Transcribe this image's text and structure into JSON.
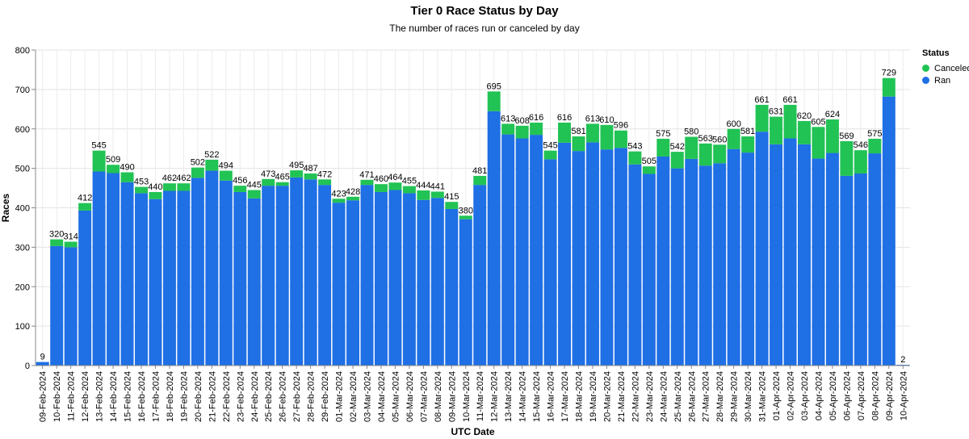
{
  "chart_data": {
    "type": "bar",
    "stacked": true,
    "title": "Tier 0 Race Status by Day",
    "subtitle": "The number of races run or canceled by day",
    "xlabel": "UTC Date",
    "ylabel": "Races",
    "ylim": [
      0,
      800
    ],
    "yticks": [
      "0",
      "100",
      "200",
      "300",
      "400",
      "500",
      "600",
      "700",
      "800"
    ],
    "legend": {
      "title": "Status",
      "position": "top-right"
    },
    "categories": [
      "09-Feb-2024",
      "10-Feb-2024",
      "11-Feb-2024",
      "12-Feb-2024",
      "13-Feb-2024",
      "14-Feb-2024",
      "15-Feb-2024",
      "16-Feb-2024",
      "17-Feb-2024",
      "18-Feb-2024",
      "19-Feb-2024",
      "20-Feb-2024",
      "21-Feb-2024",
      "22-Feb-2024",
      "23-Feb-2024",
      "24-Feb-2024",
      "25-Feb-2024",
      "26-Feb-2024",
      "27-Feb-2024",
      "28-Feb-2024",
      "29-Feb-2024",
      "01-Mar-2024",
      "02-Mar-2024",
      "03-Mar-2024",
      "04-Mar-2024",
      "05-Mar-2024",
      "06-Mar-2024",
      "07-Mar-2024",
      "08-Mar-2024",
      "09-Mar-2024",
      "10-Mar-2024",
      "11-Mar-2024",
      "12-Mar-2024",
      "13-Mar-2024",
      "14-Mar-2024",
      "15-Mar-2024",
      "16-Mar-2024",
      "17-Mar-2024",
      "18-Mar-2024",
      "19-Mar-2024",
      "20-Mar-2024",
      "21-Mar-2024",
      "22-Mar-2024",
      "23-Mar-2024",
      "24-Mar-2024",
      "25-Mar-2024",
      "26-Mar-2024",
      "27-Mar-2024",
      "28-Mar-2024",
      "29-Mar-2024",
      "30-Mar-2024",
      "31-Mar-2024",
      "01-Apr-2024",
      "02-Apr-2024",
      "03-Apr-2024",
      "04-Apr-2024",
      "05-Apr-2024",
      "06-Apr-2024",
      "07-Apr-2024",
      "08-Apr-2024",
      "09-Apr-2024",
      "10-Apr-2024"
    ],
    "totals": [
      9,
      320,
      314,
      412,
      545,
      509,
      490,
      453,
      440,
      462,
      462,
      502,
      522,
      494,
      456,
      445,
      473,
      465,
      495,
      487,
      472,
      423,
      428,
      471,
      460,
      464,
      455,
      444,
      441,
      415,
      380,
      481,
      695,
      613,
      608,
      616,
      545,
      616,
      581,
      613,
      610,
      596,
      543,
      505,
      575,
      542,
      580,
      563,
      560,
      600,
      581,
      661,
      631,
      661,
      620,
      605,
      624,
      569,
      546,
      575,
      729,
      2
    ],
    "series": [
      {
        "name": "Ran",
        "color": "#1f6fe5",
        "values": [
          9,
          303,
          300,
          393,
          492,
          488,
          465,
          437,
          422,
          443,
          443,
          476,
          494,
          469,
          440,
          424,
          456,
          456,
          477,
          472,
          458,
          413,
          419,
          458,
          440,
          445,
          437,
          420,
          425,
          397,
          371,
          458,
          645,
          586,
          576,
          585,
          523,
          565,
          544,
          566,
          548,
          552,
          510,
          486,
          530,
          500,
          524,
          507,
          513,
          549,
          540,
          593,
          561,
          576,
          561,
          525,
          539,
          481,
          487,
          538,
          682,
          2
        ]
      },
      {
        "name": "Canceled",
        "color": "#21c354",
        "values": [
          0,
          17,
          14,
          19,
          53,
          21,
          25,
          16,
          18,
          19,
          19,
          26,
          28,
          25,
          16,
          21,
          17,
          9,
          18,
          15,
          14,
          10,
          9,
          13,
          20,
          19,
          18,
          24,
          16,
          18,
          9,
          23,
          50,
          27,
          32,
          31,
          22,
          51,
          37,
          47,
          62,
          44,
          33,
          19,
          45,
          42,
          56,
          56,
          47,
          51,
          41,
          68,
          70,
          85,
          59,
          80,
          85,
          88,
          59,
          37,
          47,
          0
        ]
      }
    ],
    "grid": true
  }
}
